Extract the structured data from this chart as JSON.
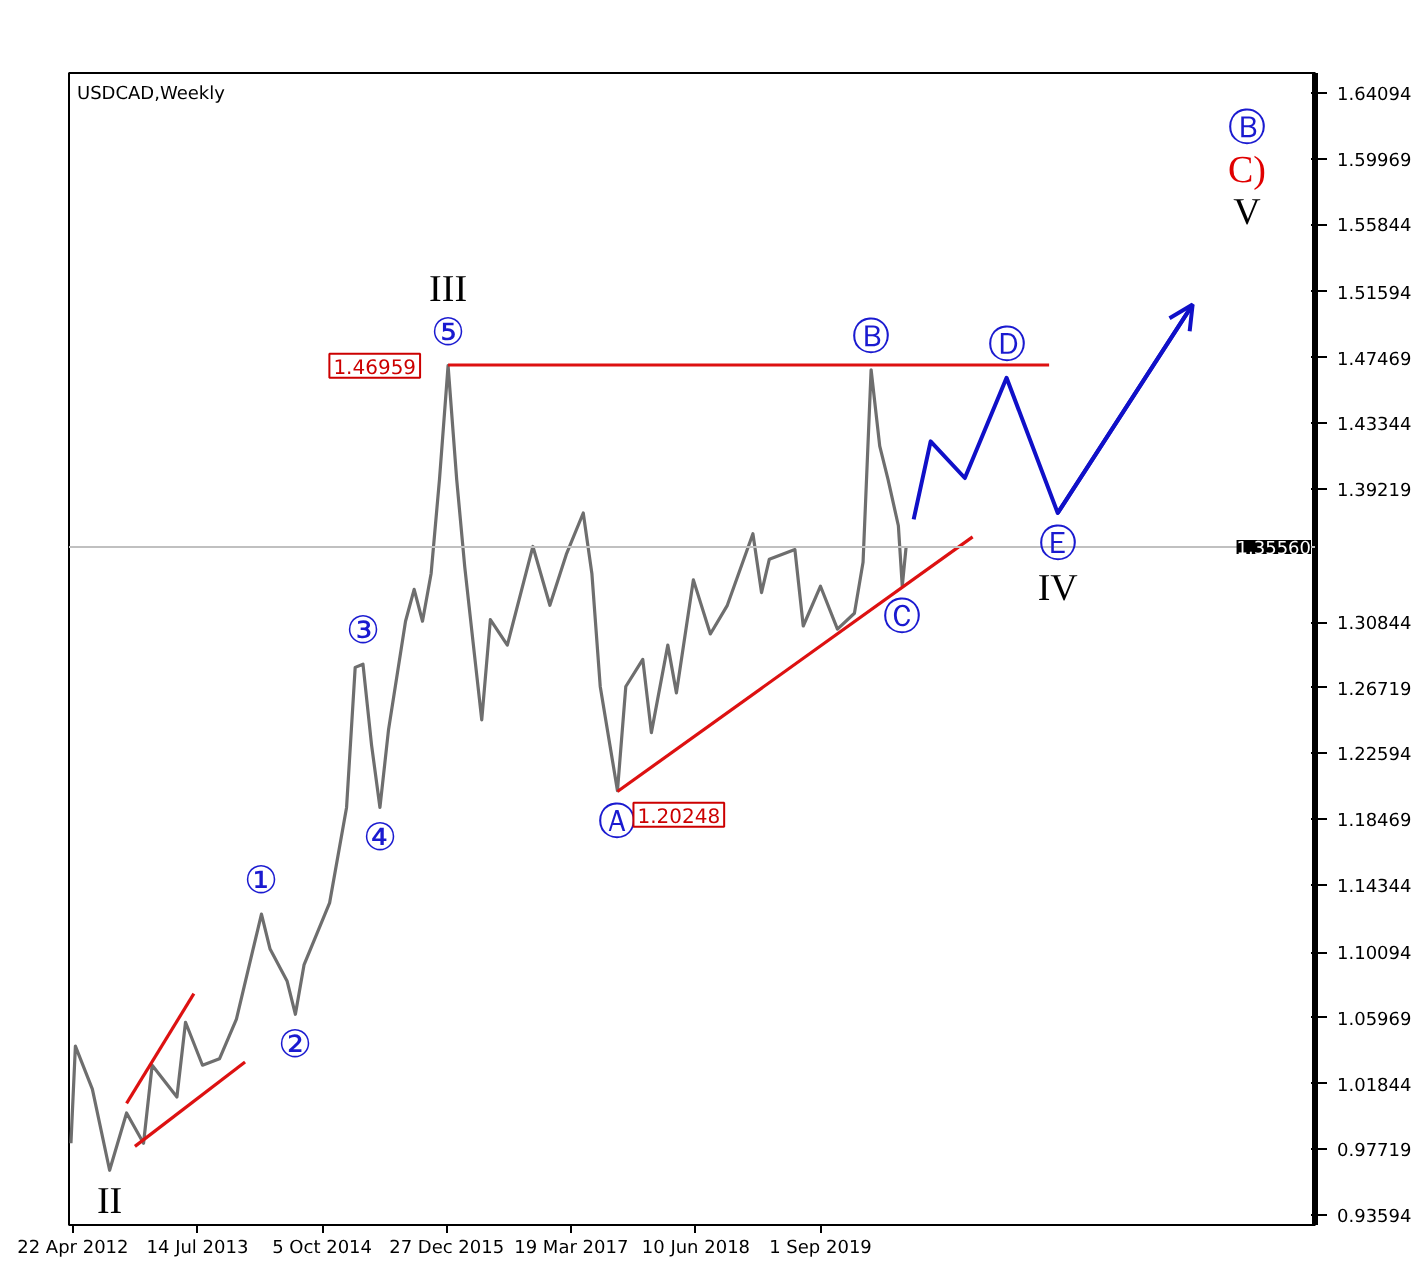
{
  "chart_data": {
    "type": "line",
    "title": "USDCAD,Weekly",
    "xlim": [
      "2012-04-08",
      "2024-07-14"
    ],
    "xticks": [
      {
        "value": "2012-04-22",
        "label": "22 Apr 2012"
      },
      {
        "value": "2013-07-14",
        "label": "14 Jul 2013"
      },
      {
        "value": "2014-10-05",
        "label": "5 Oct 2014"
      },
      {
        "value": "2015-12-27",
        "label": "27 Dec 2015"
      },
      {
        "value": "2017-03-19",
        "label": "19 Mar 2017"
      },
      {
        "value": "2018-06-10",
        "label": "10 Jun 2018"
      },
      {
        "value": "2019-09-01",
        "label": "1 Sep 2019"
      }
    ],
    "ylim": [
      0.9296,
      1.6535
    ],
    "yticks": [
      0.93594,
      0.97719,
      1.01844,
      1.05969,
      1.10094,
      1.14344,
      1.18469,
      1.22594,
      1.26719,
      1.30844,
      1.39219,
      1.43344,
      1.47469,
      1.51594,
      1.55844,
      1.59969,
      1.64094
    ],
    "grid": false,
    "series": [
      {
        "color": "#6e6e6e",
        "x": [
          "2012-04-15",
          "2012-05",
          "2012-07",
          "2012-09",
          "2012-11",
          "2013-01",
          "2013-02",
          "2013-05",
          "2013-06",
          "2013-08",
          "2013-10",
          "2013-12",
          "2014-03",
          "2014-04",
          "2014-06",
          "2014-07",
          "2014-08",
          "2014-11",
          "2015-01",
          "2015-02",
          "2015-03",
          "2015-04",
          "2015-05",
          "2015-06",
          "2015-08",
          "2015-09",
          "2015-10",
          "2015-11",
          "2015-12",
          "2016-01",
          "2016-02",
          "2016-03",
          "2016-04",
          "2016-05",
          "2016-06",
          "2016-08",
          "2016-11",
          "2017-01",
          "2017-03",
          "2017-05",
          "2017-06",
          "2017-07",
          "2017-09",
          "2017-10",
          "2017-12",
          "2018-01",
          "2018-03",
          "2018-04",
          "2018-06",
          "2018-08",
          "2018-10",
          "2019-01",
          "2019-02",
          "2019-03",
          "2019-06",
          "2019-07",
          "2019-09",
          "2019-11",
          "2020-01",
          "2020-02",
          "2020-03",
          "2020-04",
          "2020-05",
          "2020-06-07",
          "2020-06-21",
          "2020-07-05"
        ],
        "values": [
          0.981,
          1.042,
          1.015,
          0.964,
          1.0,
          0.981,
          1.03,
          1.01,
          1.057,
          1.03,
          1.034,
          1.059,
          1.125,
          1.103,
          1.083,
          1.062,
          1.093,
          1.132,
          1.192,
          1.28,
          1.282,
          1.231,
          1.192,
          1.241,
          1.309,
          1.329,
          1.309,
          1.339,
          1.398,
          1.46959,
          1.398,
          1.343,
          1.294,
          1.247,
          1.31,
          1.294,
          1.356,
          1.319,
          1.351,
          1.377,
          1.339,
          1.268,
          1.20248,
          1.268,
          1.285,
          1.239,
          1.294,
          1.264,
          1.335,
          1.301,
          1.319,
          1.364,
          1.327,
          1.348,
          1.354,
          1.306,
          1.331,
          1.304,
          1.314,
          1.346,
          1.467,
          1.419,
          1.398,
          1.369,
          1.331,
          1.356
        ]
      },
      {
        "color": "#dd1111",
        "x": [
          "2012-11",
          "2013-07"
        ],
        "values": [
          1.006,
          1.075
        ]
      },
      {
        "color": "#dd1111",
        "x": [
          "2012-12",
          "2014-01"
        ],
        "values": [
          0.979,
          1.032
        ]
      },
      {
        "color": "#dd1111",
        "x": [
          "2016-01",
          "2021-12"
        ],
        "values": [
          1.47,
          1.47
        ]
      },
      {
        "color": "#dd1111",
        "x": [
          "2017-09",
          "2021-03"
        ],
        "values": [
          1.202,
          1.362
        ]
      },
      {
        "color": "#1010c8",
        "x": [
          "2020-08",
          "2020-10",
          "2021-02",
          "2021-07",
          "2022-01",
          "2023-05"
        ],
        "values": [
          1.373,
          1.422,
          1.399,
          1.462,
          1.377,
          1.508
        ]
      }
    ],
    "ref_lines": [
      {
        "axis": "y",
        "value": 1.3556,
        "label": "1.35560",
        "color": "#c0c0c0"
      }
    ],
    "annotations": [
      {
        "text": "II",
        "x": "2012-09",
        "y": 0.964
      },
      {
        "text": "①",
        "x": "2014-03",
        "y": 1.125
      },
      {
        "text": "②",
        "x": "2014-07",
        "y": 1.062
      },
      {
        "text": "③",
        "x": "2015-03",
        "y": 1.282
      },
      {
        "text": "④",
        "x": "2015-05",
        "y": 1.192
      },
      {
        "text": "⑤",
        "x": "2016-01",
        "y": 1.46959
      },
      {
        "text": "III",
        "x": "2016-01",
        "y": 1.46959
      },
      {
        "text": "1.46959",
        "x": "2016-01",
        "y": 1.46959
      },
      {
        "text": "Ⓐ",
        "x": "2017-09",
        "y": 1.20248
      },
      {
        "text": "1.20248",
        "x": "2017-09",
        "y": 1.20248
      },
      {
        "text": "Ⓑ",
        "x": "2020-03",
        "y": 1.467
      },
      {
        "text": "Ⓒ",
        "x": "2020-06-21",
        "y": 1.331
      },
      {
        "text": "Ⓓ",
        "x": "2021-07",
        "y": 1.462
      },
      {
        "text": "Ⓔ",
        "x": "2022-01",
        "y": 1.377
      },
      {
        "text": "IV",
        "x": "2022-01",
        "y": 1.377
      },
      "Ⓑ",
      "C)",
      "V"
    ]
  }
}
